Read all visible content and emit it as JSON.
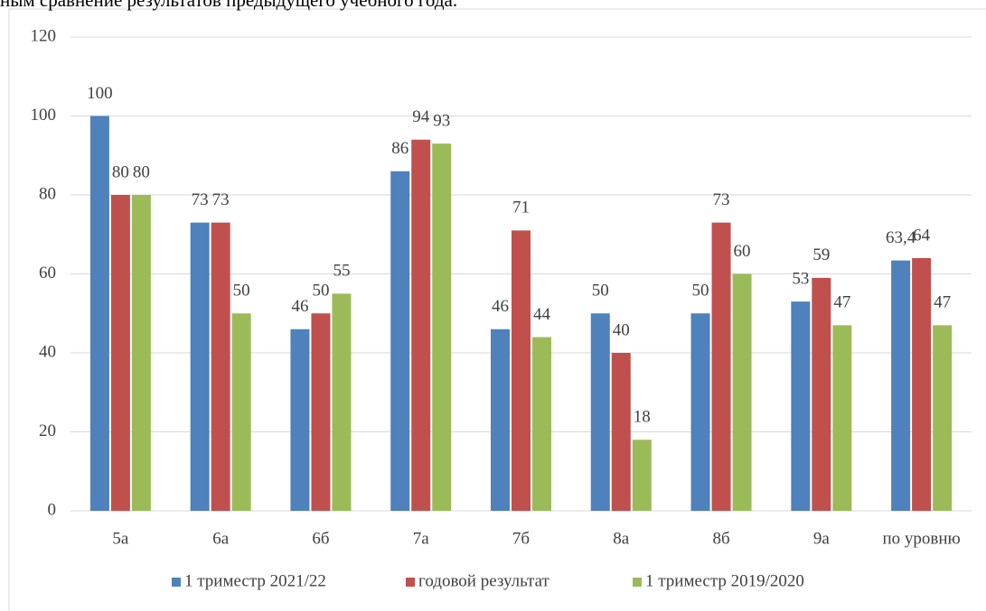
{
  "caption": "ным сравнение результатов предыдущего учебного года.",
  "chart_data": {
    "type": "bar",
    "categories": [
      "5а",
      "6а",
      "6б",
      "7а",
      "7б",
      "8а",
      "8б",
      "9а",
      "по уровню"
    ],
    "series": [
      {
        "name": "1 триместр 2021/22",
        "color": "#4f81bd",
        "values": [
          100,
          73,
          46,
          86,
          46,
          50,
          50,
          53,
          63.4
        ],
        "value_labels": [
          "100",
          "73",
          "46",
          "86",
          "46",
          "50",
          "50",
          "53",
          "63,4"
        ]
      },
      {
        "name": "годовой результат",
        "color": "#c0504d",
        "values": [
          80,
          73,
          50,
          94,
          71,
          40,
          73,
          59,
          64
        ]
      },
      {
        "name": "1 триместр 2019/2020",
        "color": "#9bbb59",
        "values": [
          80,
          50,
          55,
          93,
          44,
          18,
          60,
          47,
          47
        ]
      }
    ],
    "ylim": [
      0,
      120
    ],
    "yticks": [
      0,
      20,
      40,
      60,
      80,
      100,
      120
    ],
    "grid": true,
    "legend": "bottom"
  }
}
